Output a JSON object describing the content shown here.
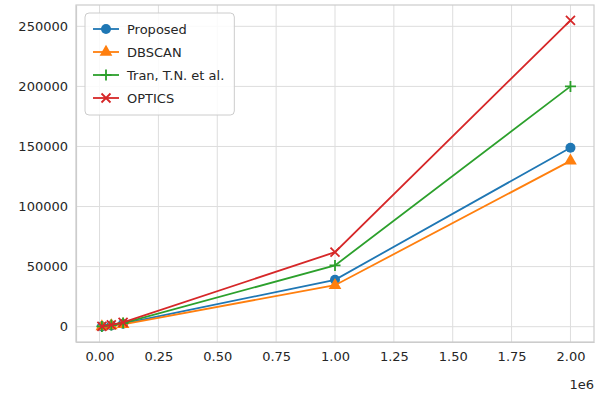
{
  "chart_data": {
    "type": "line",
    "x": [
      10000,
      50000,
      100000,
      1000000,
      2000000
    ],
    "series": [
      {
        "name": "Proposed",
        "color": "#1f77b4",
        "marker": "circle",
        "values": [
          200,
          1000,
          2500,
          39000,
          149000
        ]
      },
      {
        "name": "DBSCAN",
        "color": "#ff7f0e",
        "marker": "triangle",
        "values": [
          150,
          900,
          2000,
          34500,
          138000
        ]
      },
      {
        "name": "Tran, T.N. et al.",
        "color": "#2ca02c",
        "marker": "plus",
        "values": [
          250,
          1300,
          3000,
          51000,
          200000
        ]
      },
      {
        "name": "OPTICS",
        "color": "#d62728",
        "marker": "x",
        "values": [
          300,
          1500,
          3500,
          62000,
          255000
        ]
      }
    ],
    "xlim": [
      -100000,
      2100000
    ],
    "xticks": [
      {
        "value": 0,
        "label": "0.00"
      },
      {
        "value": 250000,
        "label": "0.25"
      },
      {
        "value": 500000,
        "label": "0.50"
      },
      {
        "value": 750000,
        "label": "0.75"
      },
      {
        "value": 1000000,
        "label": "1.00"
      },
      {
        "value": 1250000,
        "label": "1.25"
      },
      {
        "value": 1500000,
        "label": "1.50"
      },
      {
        "value": 1750000,
        "label": "1.75"
      },
      {
        "value": 2000000,
        "label": "2.00"
      }
    ],
    "ylim": [
      -12750,
      267750
    ],
    "yticks": [
      0,
      50000,
      100000,
      150000,
      200000,
      250000
    ],
    "annotations": [
      "1e6"
    ],
    "grid": true,
    "legend": "upper-left"
  }
}
